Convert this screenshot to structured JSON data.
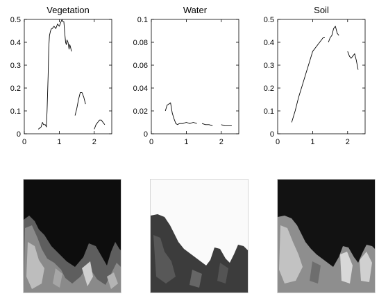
{
  "chart_data": [
    {
      "type": "line",
      "title": "Vegetation",
      "xlabel": "",
      "ylabel": "",
      "xlim": [
        0,
        2.5
      ],
      "ylim": [
        0,
        0.5
      ],
      "xticks": [
        "0",
        "1",
        "2"
      ],
      "yticks": [
        "0",
        "0.1",
        "0.2",
        "0.3",
        "0.4",
        "0.5"
      ],
      "series": [
        {
          "x": [
            0.4,
            0.48,
            0.52,
            0.55,
            0.6,
            0.63,
            0.65,
            0.68,
            0.7,
            0.72,
            0.75,
            0.78,
            0.8,
            0.85,
            0.9,
            0.95,
            1.0,
            1.05,
            1.08,
            1.1,
            1.13,
            1.15,
            1.18,
            1.2,
            1.22,
            1.25,
            1.28,
            1.3,
            1.32,
            1.35
          ],
          "y": [
            0.02,
            0.03,
            0.05,
            0.04,
            0.04,
            0.03,
            0.1,
            0.25,
            0.38,
            0.43,
            0.45,
            0.46,
            0.46,
            0.47,
            0.46,
            0.48,
            0.47,
            0.49,
            0.5,
            0.49,
            0.49,
            0.45,
            0.4,
            0.39,
            0.41,
            0.4,
            0.37,
            0.39,
            0.38,
            0.36
          ]
        },
        {
          "x": [
            1.45,
            1.5,
            1.55,
            1.6,
            1.65,
            1.7,
            1.75
          ],
          "y": [
            0.08,
            0.11,
            0.15,
            0.18,
            0.18,
            0.16,
            0.13
          ]
        },
        {
          "x": [
            2.0,
            2.05,
            2.1,
            2.15,
            2.2,
            2.25,
            2.3
          ],
          "y": [
            0.02,
            0.04,
            0.05,
            0.06,
            0.06,
            0.05,
            0.04
          ]
        }
      ]
    },
    {
      "type": "line",
      "title": "Water",
      "xlabel": "",
      "ylabel": "",
      "xlim": [
        0,
        2.5
      ],
      "ylim": [
        0,
        0.1
      ],
      "xticks": [
        "0",
        "1",
        "2"
      ],
      "yticks": [
        "0",
        "0.02",
        "0.04",
        "0.06",
        "0.08",
        "0.1"
      ],
      "series": [
        {
          "x": [
            0.4,
            0.45,
            0.5,
            0.55,
            0.6,
            0.65,
            0.7,
            0.75,
            0.8,
            0.9,
            1.0,
            1.1,
            1.2,
            1.3
          ],
          "y": [
            0.02,
            0.025,
            0.026,
            0.027,
            0.018,
            0.013,
            0.009,
            0.008,
            0.009,
            0.009,
            0.01,
            0.009,
            0.01,
            0.009
          ]
        },
        {
          "x": [
            1.45,
            1.55,
            1.65,
            1.75
          ],
          "y": [
            0.009,
            0.008,
            0.008,
            0.007
          ]
        },
        {
          "x": [
            2.0,
            2.1,
            2.2,
            2.3
          ],
          "y": [
            0.008,
            0.007,
            0.007,
            0.007
          ]
        }
      ]
    },
    {
      "type": "line",
      "title": "Soil",
      "xlabel": "",
      "ylabel": "",
      "xlim": [
        0,
        2.5
      ],
      "ylim": [
        0,
        0.5
      ],
      "xticks": [
        "0",
        "1",
        "2"
      ],
      "yticks": [
        "0",
        "0.1",
        "0.2",
        "0.3",
        "0.4",
        "0.5"
      ],
      "series": [
        {
          "x": [
            0.4,
            0.5,
            0.6,
            0.7,
            0.8,
            0.9,
            1.0,
            1.1,
            1.2,
            1.3,
            1.35
          ],
          "y": [
            0.05,
            0.1,
            0.16,
            0.21,
            0.26,
            0.31,
            0.36,
            0.38,
            0.4,
            0.42,
            0.42
          ]
        },
        {
          "x": [
            1.45,
            1.5,
            1.55,
            1.6,
            1.65,
            1.7,
            1.75
          ],
          "y": [
            0.4,
            0.42,
            0.43,
            0.46,
            0.47,
            0.44,
            0.43
          ]
        },
        {
          "x": [
            2.0,
            2.05,
            2.1,
            2.15,
            2.2,
            2.25,
            2.3
          ],
          "y": [
            0.36,
            0.34,
            0.33,
            0.34,
            0.35,
            0.32,
            0.28
          ]
        }
      ]
    }
  ],
  "images": [
    {
      "name": "vegetation",
      "tone_sky": "#0e0e0e",
      "tone_land": "#7a7a7a"
    },
    {
      "name": "water",
      "tone_sky": "#ffffff",
      "tone_land": "#4a4a4a"
    },
    {
      "name": "soil",
      "tone_sky": "#141414",
      "tone_land": "#9a9a9a"
    }
  ]
}
